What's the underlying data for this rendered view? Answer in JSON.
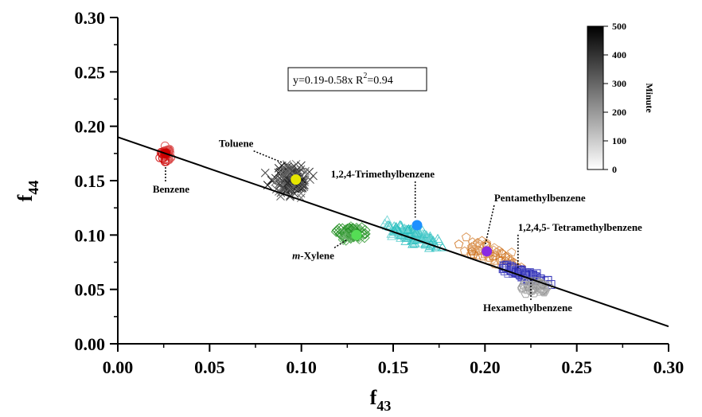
{
  "chart_data": {
    "type": "scatter",
    "title": "",
    "xlabel": "f",
    "xlabel_sub": "43",
    "ylabel": "f",
    "ylabel_sub": "44",
    "xlim": [
      0.0,
      0.3
    ],
    "ylim": [
      0.0,
      0.3
    ],
    "x_ticks": [
      "0.00",
      "0.05",
      "0.10",
      "0.15",
      "0.20",
      "0.25",
      "0.30"
    ],
    "y_ticks": [
      "0.00",
      "0.05",
      "0.10",
      "0.15",
      "0.20",
      "0.25",
      "0.30"
    ],
    "grid": false,
    "fit_line": {
      "intercept": 0.19,
      "slope": -0.58
    },
    "equation_label": {
      "main": "y=0.19-0.58x R",
      "sup": "2",
      "tail": "=0.94"
    },
    "colorbar": {
      "title": "Minute",
      "ticks": [
        "0",
        "100",
        "200",
        "300",
        "400",
        "500"
      ],
      "range": [
        0,
        500
      ]
    },
    "series": [
      {
        "name": "Benzene",
        "marker": "circle",
        "color": "#cc0000",
        "center": [
          0.026,
          0.175
        ],
        "spread": [
          0.003,
          0.008
        ],
        "count": 45,
        "mean_marker": {
          "x": 0.026,
          "y": 0.175,
          "color": "#cc0000"
        }
      },
      {
        "name": "Toluene",
        "marker": "cross",
        "color": "#111111",
        "center": [
          0.095,
          0.15
        ],
        "spread": [
          0.01,
          0.015
        ],
        "count": 160,
        "mean_marker": {
          "x": 0.097,
          "y": 0.151,
          "color": "#e6e600"
        }
      },
      {
        "name": "m-Xylene",
        "marker": "diamond",
        "color": "#1a8c1a",
        "center": [
          0.127,
          0.101
        ],
        "spread": [
          0.008,
          0.006
        ],
        "count": 80,
        "mean_marker": {
          "x": 0.13,
          "y": 0.1,
          "color": "#55dd55"
        }
      },
      {
        "name": "1,2,4-Trimethylbenzene",
        "marker": "triangle",
        "color": "#1fbcbc",
        "center": [
          0.16,
          0.1
        ],
        "spread": [
          0.014,
          0.011
        ],
        "count": 120,
        "mean_marker": {
          "x": 0.163,
          "y": 0.109,
          "color": "#1e90ff"
        }
      },
      {
        "name": "Pentamethylbenzene",
        "marker": "pentagon",
        "color": "#cc6a10",
        "center": [
          0.203,
          0.084
        ],
        "spread": [
          0.016,
          0.011
        ],
        "count": 60,
        "mean_marker": {
          "x": 0.201,
          "y": 0.085,
          "color": "#8a2be2"
        }
      },
      {
        "name": "1,2,4,5- Tetramethylbenzene",
        "marker": "square",
        "color": "#1b1bb0",
        "center": [
          0.222,
          0.063
        ],
        "spread": [
          0.011,
          0.006
        ],
        "count": 100,
        "mean_marker": null
      },
      {
        "name": "Hexamethylbenzene",
        "marker": "hexagon",
        "color": "#888888",
        "center": [
          0.228,
          0.052
        ],
        "spread": [
          0.008,
          0.006
        ],
        "count": 45,
        "mean_marker": null
      }
    ],
    "annotations": [
      {
        "text": "Benzene",
        "x": 0.019,
        "y": 0.139,
        "arrow_to": [
          0.026,
          0.164
        ],
        "italic_prefix": ""
      },
      {
        "text": "Toluene",
        "x": 0.055,
        "y": 0.181,
        "arrow_to": [
          0.092,
          0.165
        ],
        "italic_prefix": ""
      },
      {
        "text": "1,2,4-Trimethylbenzene",
        "x": 0.116,
        "y": 0.153,
        "arrow_to": [
          0.162,
          0.116
        ],
        "italic_prefix": ""
      },
      {
        "text": "-Xylene",
        "x": 0.095,
        "y": 0.078,
        "arrow_to": [
          0.125,
          0.096
        ],
        "italic_prefix": "m"
      },
      {
        "text": "Pentamethylbenzene",
        "x": 0.205,
        "y": 0.131,
        "arrow_to": [
          0.2,
          0.09
        ],
        "italic_prefix": ""
      },
      {
        "text": "1,2,4,5- Tetramethylbenzene",
        "x": 0.218,
        "y": 0.104,
        "arrow_to": [
          0.218,
          0.07
        ],
        "italic_prefix": ""
      },
      {
        "text": "Hexamethylbenzene",
        "x": 0.199,
        "y": 0.03,
        "arrow_to": [
          0.225,
          0.06
        ],
        "italic_prefix": ""
      }
    ]
  }
}
